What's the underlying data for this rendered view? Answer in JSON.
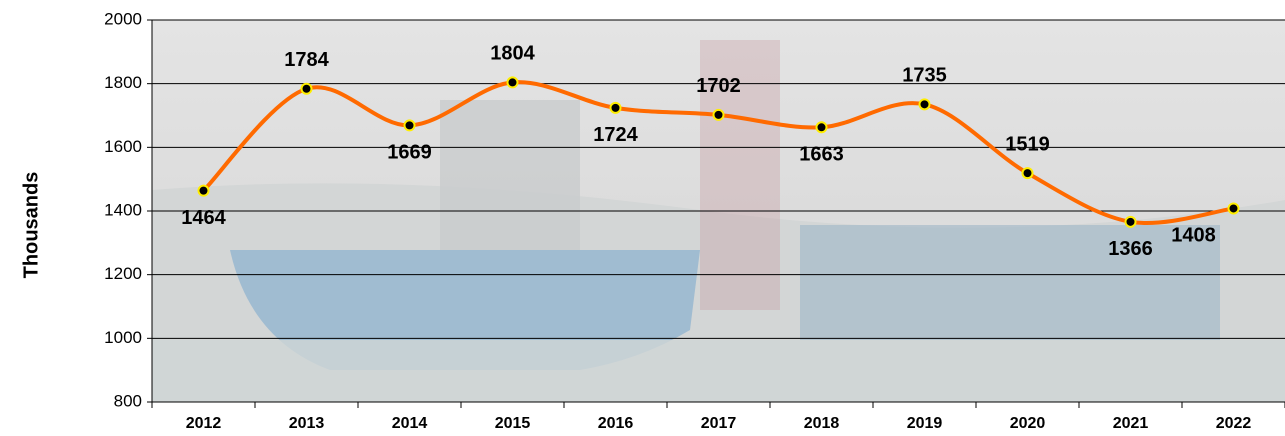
{
  "chart_data": {
    "type": "line",
    "y_label": "Thousands",
    "categories": [
      "2012",
      "2013",
      "2014",
      "2015",
      "2016",
      "2017",
      "2018",
      "2019",
      "2020",
      "2021",
      "2022"
    ],
    "values": [
      1464,
      1784,
      1669,
      1804,
      1724,
      1702,
      1663,
      1735,
      1519,
      1366,
      1408
    ],
    "color": "#ff6a00",
    "marker_color": "#000000",
    "marker_edge": "#ffee00",
    "ylim": [
      800,
      2000
    ],
    "yticks": [
      800,
      1000,
      1200,
      1400,
      1600,
      1800,
      2000
    ],
    "grid": true,
    "smooth": true
  }
}
